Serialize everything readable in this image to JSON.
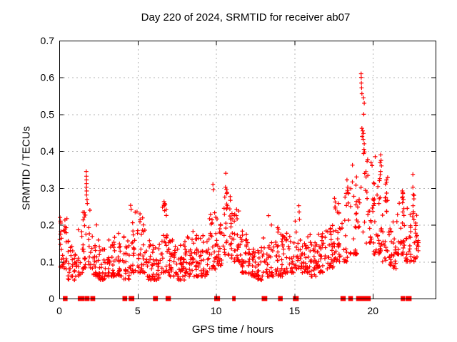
{
  "chart_data": {
    "type": "scatter",
    "title": "Day 220 of 2024, SRMTID for receiver ab07",
    "xlabel": "GPS time / hours",
    "ylabel": "SRMTID / TECUs",
    "xlim": [
      0,
      24
    ],
    "ylim": [
      0,
      0.7
    ],
    "xticks": [
      0,
      5,
      10,
      15,
      20
    ],
    "yticks": [
      0,
      0.1,
      0.2,
      0.3,
      0.4,
      0.5,
      0.6,
      0.7
    ],
    "grid": true,
    "legend": false,
    "marker": {
      "shape": "plus",
      "size": 7
    },
    "colors": {
      "marker": "#ff0000",
      "grid": "#b3b3b3",
      "axis": "#000000",
      "background": "#ffffff",
      "text": "#000000"
    },
    "series_name": "SRMTID",
    "bulk_bins": {
      "bin_width_hours": 0.5,
      "row_format": [
        "t_start",
        "y_min",
        "y_max",
        "count"
      ],
      "rows": [
        [
          0.0,
          0.08,
          0.22,
          30
        ],
        [
          0.5,
          0.05,
          0.16,
          28
        ],
        [
          1.0,
          0.06,
          0.19,
          20
        ],
        [
          1.5,
          0.08,
          0.25,
          30
        ],
        [
          2.0,
          0.06,
          0.2,
          28
        ],
        [
          2.5,
          0.05,
          0.15,
          30
        ],
        [
          3.0,
          0.06,
          0.2,
          30
        ],
        [
          3.5,
          0.06,
          0.18,
          30
        ],
        [
          4.0,
          0.05,
          0.17,
          24
        ],
        [
          4.5,
          0.07,
          0.24,
          26
        ],
        [
          5.0,
          0.07,
          0.22,
          30
        ],
        [
          5.5,
          0.05,
          0.16,
          30
        ],
        [
          6.0,
          0.05,
          0.15,
          24
        ],
        [
          6.5,
          0.07,
          0.26,
          28
        ],
        [
          7.0,
          0.06,
          0.17,
          30
        ],
        [
          7.5,
          0.05,
          0.15,
          30
        ],
        [
          8.0,
          0.06,
          0.17,
          30
        ],
        [
          8.5,
          0.06,
          0.19,
          30
        ],
        [
          9.0,
          0.06,
          0.18,
          30
        ],
        [
          9.5,
          0.08,
          0.24,
          30
        ],
        [
          10.0,
          0.09,
          0.22,
          26
        ],
        [
          10.5,
          0.11,
          0.3,
          30
        ],
        [
          11.0,
          0.1,
          0.26,
          30
        ],
        [
          11.5,
          0.07,
          0.2,
          30
        ],
        [
          12.0,
          0.06,
          0.16,
          30
        ],
        [
          12.5,
          0.05,
          0.15,
          26
        ],
        [
          13.0,
          0.06,
          0.17,
          24
        ],
        [
          13.5,
          0.06,
          0.2,
          30
        ],
        [
          14.0,
          0.06,
          0.18,
          26
        ],
        [
          14.5,
          0.07,
          0.2,
          26
        ],
        [
          15.0,
          0.08,
          0.22,
          24
        ],
        [
          15.5,
          0.07,
          0.18,
          30
        ],
        [
          16.0,
          0.06,
          0.16,
          30
        ],
        [
          16.5,
          0.07,
          0.18,
          30
        ],
        [
          17.0,
          0.08,
          0.2,
          30
        ],
        [
          17.5,
          0.1,
          0.28,
          30
        ],
        [
          18.0,
          0.1,
          0.3,
          22
        ],
        [
          18.5,
          0.12,
          0.33,
          26
        ],
        [
          19.0,
          0.18,
          0.42,
          12
        ],
        [
          19.5,
          0.15,
          0.38,
          26
        ],
        [
          20.0,
          0.12,
          0.37,
          30
        ],
        [
          20.5,
          0.1,
          0.33,
          30
        ],
        [
          21.0,
          0.08,
          0.22,
          30
        ],
        [
          21.5,
          0.12,
          0.29,
          28
        ],
        [
          22.0,
          0.1,
          0.25,
          26
        ],
        [
          22.5,
          0.1,
          0.3,
          28
        ]
      ]
    },
    "spike_points": [
      [
        0.05,
        0.22
      ],
      [
        0.08,
        0.21
      ],
      [
        0.1,
        0.205
      ],
      [
        1.72,
        0.345
      ],
      [
        1.73,
        0.332
      ],
      [
        1.735,
        0.322
      ],
      [
        1.74,
        0.312
      ],
      [
        1.73,
        0.302
      ],
      [
        1.75,
        0.292
      ],
      [
        1.74,
        0.281
      ],
      [
        1.77,
        0.268
      ],
      [
        1.79,
        0.258
      ],
      [
        4.55,
        0.253
      ],
      [
        4.58,
        0.242
      ],
      [
        5.15,
        0.23
      ],
      [
        6.68,
        0.263
      ],
      [
        6.72,
        0.258
      ],
      [
        6.75,
        0.255
      ],
      [
        6.7,
        0.252
      ],
      [
        9.8,
        0.31
      ],
      [
        9.82,
        0.295
      ],
      [
        10.62,
        0.34
      ],
      [
        10.6,
        0.302
      ],
      [
        10.66,
        0.296
      ],
      [
        10.7,
        0.288
      ],
      [
        10.72,
        0.252
      ],
      [
        10.68,
        0.243
      ],
      [
        13.35,
        0.225
      ],
      [
        15.28,
        0.252
      ],
      [
        15.3,
        0.235
      ],
      [
        15.32,
        0.215
      ],
      [
        17.55,
        0.272
      ],
      [
        17.6,
        0.262
      ],
      [
        17.82,
        0.258
      ],
      [
        18.35,
        0.322
      ],
      [
        18.4,
        0.302
      ],
      [
        18.44,
        0.285
      ],
      [
        18.7,
        0.362
      ],
      [
        19.25,
        0.61
      ],
      [
        19.26,
        0.6
      ],
      [
        19.27,
        0.585
      ],
      [
        19.28,
        0.572
      ],
      [
        19.3,
        0.556
      ],
      [
        19.4,
        0.545
      ],
      [
        19.45,
        0.53
      ],
      [
        19.42,
        0.5
      ],
      [
        19.3,
        0.462
      ],
      [
        19.35,
        0.455
      ],
      [
        19.4,
        0.448
      ],
      [
        19.32,
        0.44
      ],
      [
        19.38,
        0.432
      ],
      [
        19.45,
        0.42
      ],
      [
        19.43,
        0.405
      ],
      [
        19.47,
        0.398
      ],
      [
        20.15,
        0.385
      ],
      [
        20.5,
        0.39
      ],
      [
        20.52,
        0.375
      ],
      [
        20.55,
        0.36
      ],
      [
        20.49,
        0.345
      ],
      [
        20.47,
        0.336
      ],
      [
        21.88,
        0.292
      ],
      [
        21.92,
        0.285
      ],
      [
        21.9,
        0.276
      ],
      [
        21.95,
        0.268
      ],
      [
        21.89,
        0.26
      ],
      [
        22.55,
        0.337
      ],
      [
        22.55,
        0.302
      ],
      [
        22.57,
        0.282
      ],
      [
        22.56,
        0.252
      ],
      [
        22.58,
        0.236
      ]
    ],
    "zero_marks_hours": [
      [
        0.3,
        0.34
      ],
      [
        0.42,
        0.46
      ],
      [
        1.25,
        1.55
      ],
      [
        1.7,
        1.74
      ],
      [
        1.82,
        1.86
      ],
      [
        2.05,
        2.09
      ],
      [
        2.18,
        2.22
      ],
      [
        4.1,
        4.14
      ],
      [
        4.22,
        4.26
      ],
      [
        4.5,
        4.72
      ],
      [
        6.05,
        6.09
      ],
      [
        6.18,
        6.22
      ],
      [
        6.85,
        7.05
      ],
      [
        9.95,
        10.18
      ],
      [
        11.1,
        11.18
      ],
      [
        12.98,
        13.2
      ],
      [
        14.02,
        14.06
      ],
      [
        14.14,
        14.18
      ],
      [
        14.97,
        15.2
      ],
      [
        18.0,
        18.2
      ],
      [
        18.5,
        18.54
      ],
      [
        18.62,
        18.66
      ],
      [
        19.0,
        19.6
      ],
      [
        19.68,
        19.8
      ],
      [
        21.84,
        21.88
      ],
      [
        21.94,
        21.98
      ],
      [
        22.15,
        22.4
      ]
    ],
    "x_tick_labels": [
      "0",
      "5",
      "10",
      "15",
      "20"
    ],
    "y_tick_labels": [
      "0",
      "0.1",
      "0.2",
      "0.3",
      "0.4",
      "0.5",
      "0.6",
      "0.7"
    ]
  }
}
